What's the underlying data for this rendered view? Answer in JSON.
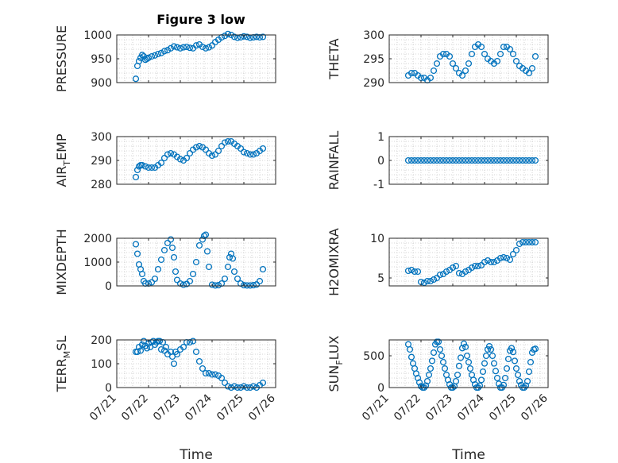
{
  "figure": {
    "title": "Figure 3 low",
    "xlabel": "Time"
  },
  "colors": {
    "marker": "#0072BD",
    "axis": "#262626",
    "grid": "#c8c8c8"
  },
  "chart_data": [
    {
      "type": "scatter",
      "id": "pressure",
      "ylabel": "PRESSURE",
      "ylabel_sub": "",
      "ylim": [
        900,
        1000
      ],
      "yticks": [
        "900",
        "950",
        "1000"
      ],
      "yticks_values": [
        900,
        950,
        1000
      ],
      "xlim": [
        0,
        5
      ],
      "xticks": [],
      "title": "Figure 3 low",
      "grid": true,
      "x": [
        0.6,
        0.65,
        0.7,
        0.75,
        0.8,
        0.85,
        0.9,
        0.95,
        1.0,
        1.1,
        1.2,
        1.3,
        1.4,
        1.5,
        1.6,
        1.7,
        1.8,
        1.9,
        2.0,
        2.1,
        2.2,
        2.3,
        2.4,
        2.5,
        2.6,
        2.7,
        2.8,
        2.9,
        3.0,
        3.1,
        3.2,
        3.3,
        3.4,
        3.5,
        3.6,
        3.7,
        3.8,
        3.9,
        4.0,
        4.1,
        4.2,
        4.3,
        4.4,
        4.5,
        4.6
      ],
      "y": [
        908,
        935,
        945,
        952,
        958,
        955,
        948,
        950,
        952,
        955,
        957,
        960,
        962,
        966,
        968,
        972,
        976,
        974,
        972,
        974,
        975,
        973,
        972,
        978,
        980,
        975,
        972,
        974,
        978,
        985,
        990,
        995,
        998,
        1002,
        1000,
        996,
        994,
        995,
        997,
        996,
        994,
        995,
        996,
        995,
        996
      ]
    },
    {
      "type": "scatter",
      "id": "theta",
      "ylabel": "THETA",
      "ylabel_sub": "",
      "ylim": [
        290,
        300
      ],
      "yticks": [
        "290",
        "295",
        "300"
      ],
      "yticks_values": [
        290,
        295,
        300
      ],
      "xlim": [
        0,
        5
      ],
      "xticks": [],
      "grid": true,
      "x": [
        0.6,
        0.7,
        0.8,
        0.9,
        1.0,
        1.1,
        1.2,
        1.3,
        1.4,
        1.5,
        1.6,
        1.7,
        1.8,
        1.9,
        2.0,
        2.1,
        2.2,
        2.3,
        2.4,
        2.5,
        2.6,
        2.7,
        2.8,
        2.9,
        3.0,
        3.1,
        3.2,
        3.3,
        3.4,
        3.5,
        3.6,
        3.7,
        3.8,
        3.9,
        4.0,
        4.1,
        4.2,
        4.3,
        4.4,
        4.5,
        4.6
      ],
      "y": [
        291.5,
        292,
        292,
        291.5,
        291,
        291,
        290.5,
        291,
        292.5,
        294,
        295.5,
        296,
        296,
        295.5,
        294,
        293,
        292,
        291.5,
        292.5,
        294,
        296,
        297.5,
        298,
        297.5,
        296,
        295,
        294.5,
        294,
        294.5,
        296,
        297.5,
        297.5,
        297,
        296,
        294.5,
        293.5,
        293,
        292.5,
        292,
        293,
        295.5
      ]
    },
    {
      "type": "scatter",
      "id": "air_temp",
      "ylabel": "AIR",
      "ylabel_sub": "T",
      "ylabel_rest": "EMP",
      "ylim": [
        280,
        300
      ],
      "yticks": [
        "280",
        "290",
        "300"
      ],
      "yticks_values": [
        280,
        290,
        300
      ],
      "xlim": [
        0,
        5
      ],
      "xticks": [],
      "grid": true,
      "x": [
        0.6,
        0.65,
        0.7,
        0.75,
        0.8,
        0.9,
        1.0,
        1.1,
        1.2,
        1.3,
        1.4,
        1.5,
        1.6,
        1.7,
        1.8,
        1.9,
        2.0,
        2.1,
        2.2,
        2.3,
        2.4,
        2.5,
        2.6,
        2.7,
        2.8,
        2.9,
        3.0,
        3.1,
        3.2,
        3.3,
        3.4,
        3.5,
        3.6,
        3.7,
        3.8,
        3.9,
        4.0,
        4.1,
        4.2,
        4.3,
        4.4,
        4.5,
        4.6
      ],
      "y": [
        283,
        286,
        287.5,
        288,
        288,
        287.5,
        287,
        287,
        287,
        288,
        289,
        291,
        292.5,
        293,
        292.5,
        291.5,
        290.5,
        290,
        291,
        293,
        294.5,
        295.5,
        296,
        295.5,
        294.5,
        293,
        292,
        292.5,
        294,
        296,
        297.5,
        298,
        298,
        297,
        296,
        295,
        293.5,
        293,
        292.5,
        292.5,
        293,
        294,
        295
      ]
    },
    {
      "type": "scatter",
      "id": "rainfall",
      "ylabel": "RAINFALL",
      "ylabel_sub": "",
      "ylim": [
        -1,
        1
      ],
      "yticks": [
        "-1",
        "0",
        "1"
      ],
      "yticks_values": [
        -1,
        0,
        1
      ],
      "xlim": [
        0,
        5
      ],
      "xticks": [],
      "grid": true,
      "x": [
        0.6,
        0.7,
        0.8,
        0.9,
        1.0,
        1.1,
        1.2,
        1.3,
        1.4,
        1.5,
        1.6,
        1.7,
        1.8,
        1.9,
        2.0,
        2.1,
        2.2,
        2.3,
        2.4,
        2.5,
        2.6,
        2.7,
        2.8,
        2.9,
        3.0,
        3.1,
        3.2,
        3.3,
        3.4,
        3.5,
        3.6,
        3.7,
        3.8,
        3.9,
        4.0,
        4.1,
        4.2,
        4.3,
        4.4,
        4.5,
        4.6
      ],
      "y": [
        0,
        0,
        0,
        0,
        0,
        0,
        0,
        0,
        0,
        0,
        0,
        0,
        0,
        0,
        0,
        0,
        0,
        0,
        0,
        0,
        0,
        0,
        0,
        0,
        0,
        0,
        0,
        0,
        0,
        0,
        0,
        0,
        0,
        0,
        0,
        0,
        0,
        0,
        0,
        0,
        0
      ]
    },
    {
      "type": "scatter",
      "id": "mixdepth",
      "ylabel": "MIXDEPTH",
      "ylabel_sub": "",
      "ylim": [
        0,
        2000
      ],
      "yticks": [
        "0",
        "1000",
        "2000"
      ],
      "yticks_values": [
        0,
        1000,
        2000
      ],
      "xlim": [
        0,
        5
      ],
      "xticks": [],
      "grid": true,
      "x": [
        0.6,
        0.65,
        0.7,
        0.75,
        0.8,
        0.85,
        0.9,
        1.0,
        1.1,
        1.2,
        1.3,
        1.4,
        1.5,
        1.6,
        1.7,
        1.75,
        1.8,
        1.85,
        1.9,
        2.0,
        2.1,
        2.2,
        2.3,
        2.4,
        2.5,
        2.6,
        2.7,
        2.75,
        2.8,
        2.85,
        2.9,
        3.0,
        3.1,
        3.2,
        3.3,
        3.4,
        3.5,
        3.55,
        3.6,
        3.65,
        3.7,
        3.8,
        3.9,
        4.0,
        4.1,
        4.2,
        4.3,
        4.4,
        4.5,
        4.6
      ],
      "y": [
        1750,
        1350,
        900,
        700,
        500,
        200,
        100,
        100,
        150,
        300,
        700,
        1100,
        1500,
        1800,
        1950,
        1600,
        1200,
        600,
        250,
        100,
        50,
        80,
        200,
        500,
        1000,
        1700,
        1950,
        2100,
        2150,
        1450,
        800,
        50,
        20,
        30,
        100,
        300,
        800,
        1200,
        1350,
        1150,
        600,
        300,
        100,
        30,
        20,
        20,
        30,
        60,
        200,
        700
      ]
    },
    {
      "type": "scatter",
      "id": "h2omixra",
      "ylabel": "H2OMIXRA",
      "ylabel_sub": "",
      "ylim": [
        4,
        10
      ],
      "yticks": [
        "5",
        "10"
      ],
      "yticks_values": [
        5,
        10
      ],
      "xlim": [
        0,
        5
      ],
      "xticks": [],
      "grid": true,
      "x": [
        0.6,
        0.7,
        0.8,
        0.9,
        1.0,
        1.1,
        1.2,
        1.3,
        1.4,
        1.5,
        1.6,
        1.7,
        1.8,
        1.9,
        2.0,
        2.1,
        2.2,
        2.3,
        2.4,
        2.5,
        2.6,
        2.7,
        2.8,
        2.9,
        3.0,
        3.1,
        3.2,
        3.3,
        3.4,
        3.5,
        3.6,
        3.7,
        3.8,
        3.9,
        4.0,
        4.1,
        4.2,
        4.3,
        4.4,
        4.5,
        4.6
      ],
      "y": [
        5.9,
        6,
        5.8,
        5.8,
        4.5,
        4.4,
        4.6,
        4.6,
        4.8,
        5,
        5.4,
        5.5,
        5.8,
        6,
        6.3,
        6.5,
        5.6,
        5.5,
        5.8,
        6,
        6.3,
        6.5,
        6.5,
        6.6,
        7,
        7.2,
        7,
        7,
        7.2,
        7.5,
        7.6,
        7.5,
        7.3,
        8,
        8.5,
        9.3,
        9.5,
        9.5,
        9.5,
        9.5,
        9.5
      ]
    },
    {
      "type": "scatter",
      "id": "terr_msl",
      "ylabel": "TERR",
      "ylabel_sub": "M",
      "ylabel_rest": "SL",
      "ylim": [
        0,
        200
      ],
      "yticks": [
        "0",
        "100",
        "200"
      ],
      "yticks_values": [
        0,
        100,
        200
      ],
      "xlim": [
        0,
        5
      ],
      "xticks": [
        "07/21",
        "07/22",
        "07/23",
        "07/24",
        "07/25",
        "07/26"
      ],
      "xticks_values": [
        0,
        1,
        2,
        3,
        4,
        5
      ],
      "xlabel": "Time",
      "grid": true,
      "x": [
        0.6,
        0.65,
        0.7,
        0.75,
        0.8,
        0.85,
        0.9,
        0.95,
        1.0,
        1.05,
        1.1,
        1.15,
        1.2,
        1.25,
        1.3,
        1.35,
        1.4,
        1.45,
        1.5,
        1.55,
        1.6,
        1.7,
        1.75,
        1.8,
        1.85,
        1.9,
        2.0,
        2.1,
        2.2,
        2.3,
        2.4,
        2.5,
        2.6,
        2.7,
        2.8,
        2.9,
        3.0,
        3.1,
        3.2,
        3.3,
        3.4,
        3.5,
        3.6,
        3.7,
        3.8,
        3.9,
        4.0,
        4.1,
        4.2,
        4.3,
        4.4,
        4.5,
        4.6
      ],
      "y": [
        150,
        150,
        170,
        155,
        180,
        195,
        175,
        165,
        185,
        170,
        190,
        195,
        180,
        190,
        195,
        195,
        160,
        190,
        155,
        170,
        140,
        150,
        130,
        100,
        150,
        140,
        160,
        170,
        190,
        190,
        195,
        150,
        110,
        80,
        60,
        60,
        55,
        55,
        50,
        40,
        20,
        5,
        0,
        5,
        0,
        0,
        5,
        0,
        0,
        5,
        0,
        10,
        20
      ]
    },
    {
      "type": "scatter",
      "id": "sun_flux",
      "ylabel": "SUN",
      "ylabel_sub": "F",
      "ylabel_rest": "LUX",
      "ylim": [
        0,
        750
      ],
      "yticks": [
        "0",
        "500"
      ],
      "yticks_values": [
        0,
        500
      ],
      "xlim": [
        0,
        5
      ],
      "xticks": [
        "07/21",
        "07/22",
        "07/23",
        "07/24",
        "07/25",
        "07/26"
      ],
      "xticks_values": [
        0,
        1,
        2,
        3,
        4,
        5
      ],
      "xlabel": "Time",
      "grid": true,
      "x": [
        0.6,
        0.65,
        0.7,
        0.75,
        0.8,
        0.85,
        0.9,
        0.95,
        1.0,
        1.05,
        1.1,
        1.15,
        1.2,
        1.25,
        1.3,
        1.35,
        1.4,
        1.45,
        1.5,
        1.55,
        1.6,
        1.65,
        1.7,
        1.75,
        1.8,
        1.85,
        1.9,
        1.95,
        2.0,
        2.05,
        2.1,
        2.15,
        2.2,
        2.25,
        2.3,
        2.35,
        2.4,
        2.45,
        2.5,
        2.55,
        2.6,
        2.65,
        2.7,
        2.75,
        2.8,
        2.85,
        2.9,
        2.95,
        3.0,
        3.05,
        3.1,
        3.15,
        3.2,
        3.25,
        3.3,
        3.35,
        3.4,
        3.45,
        3.5,
        3.55,
        3.6,
        3.65,
        3.7,
        3.75,
        3.8,
        3.85,
        3.9,
        3.95,
        4.0,
        4.05,
        4.1,
        4.15,
        4.2,
        4.25,
        4.3,
        4.35,
        4.4,
        4.45,
        4.5,
        4.55,
        4.6
      ],
      "y": [
        680,
        600,
        480,
        380,
        300,
        220,
        150,
        80,
        20,
        0,
        0,
        30,
        100,
        200,
        300,
        420,
        550,
        680,
        720,
        720,
        600,
        500,
        400,
        300,
        200,
        120,
        50,
        0,
        0,
        20,
        100,
        200,
        340,
        470,
        620,
        690,
        640,
        500,
        400,
        300,
        200,
        120,
        50,
        0,
        0,
        30,
        120,
        250,
        380,
        500,
        600,
        650,
        600,
        500,
        380,
        260,
        150,
        60,
        0,
        0,
        40,
        150,
        300,
        450,
        580,
        620,
        560,
        420,
        300,
        200,
        100,
        40,
        0,
        0,
        30,
        100,
        250,
        400,
        550,
        600,
        610
      ]
    }
  ]
}
